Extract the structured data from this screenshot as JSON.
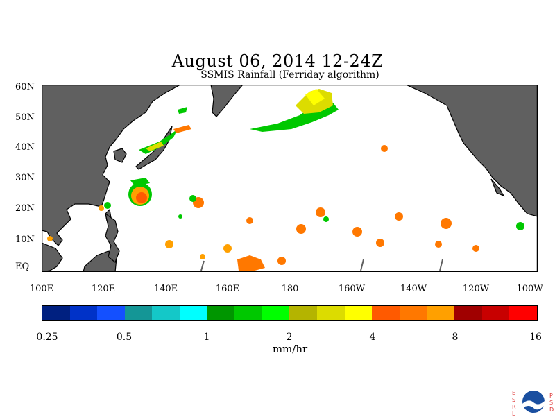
{
  "title": "August 06, 2014 12-24Z",
  "subtitle": "SSMIS Rainfall (Ferriday algorithm)",
  "lat_labels": [
    "60N",
    "50N",
    "40N",
    "30N",
    "20N",
    "10N",
    "EQ"
  ],
  "lon_labels": [
    "100E",
    "120E",
    "140E",
    "160E",
    "180",
    "160W",
    "140W",
    "120W",
    "100W"
  ],
  "colorbar": {
    "colors": [
      "#002080",
      "#0032c8",
      "#1450ff",
      "#149696",
      "#14c8c8",
      "#00ffff",
      "#009600",
      "#00c800",
      "#00ff00",
      "#b4b400",
      "#dcdc00",
      "#ffff00",
      "#ff5a00",
      "#ff7800",
      "#ffa000",
      "#a00000",
      "#c80000",
      "#ff0000"
    ],
    "labels": [
      "0.25",
      "0.5",
      "1",
      "2",
      "4",
      "8",
      "16"
    ],
    "units": "mm/hr"
  },
  "map": {
    "land_color": "#606060",
    "ocean_color": "#ffffff"
  },
  "logo": {
    "letters_left": [
      "E",
      "S",
      "R",
      "L"
    ],
    "letters_right": [
      "P",
      "S",
      "D"
    ],
    "badge": "NOAA"
  }
}
